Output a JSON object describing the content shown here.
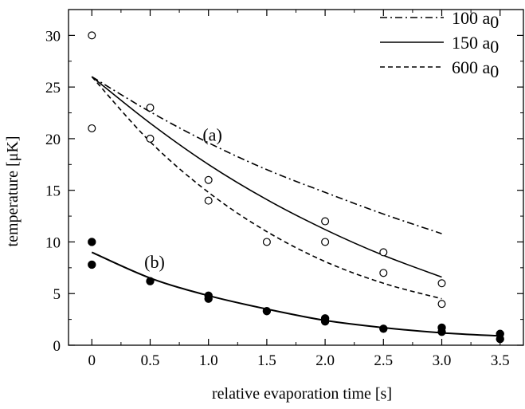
{
  "chart_data": {
    "type": "scatter",
    "xlabel": "relative evaporation time [s]",
    "ylabel": "temperature [μK]",
    "xlim": [
      -0.2,
      3.7
    ],
    "ylim": [
      0,
      32.5
    ],
    "xticks": [
      {
        "value": 0,
        "label": "0"
      },
      {
        "value": 0.5,
        "label": "0.5"
      },
      {
        "value": 1.0,
        "label": "1.0"
      },
      {
        "value": 1.5,
        "label": "1.5"
      },
      {
        "value": 2.0,
        "label": "2.0"
      },
      {
        "value": 2.5,
        "label": "2.5"
      },
      {
        "value": 3.0,
        "label": "3.0"
      },
      {
        "value": 3.5,
        "label": "3.5"
      }
    ],
    "yticks": [
      {
        "value": 0,
        "label": "0"
      },
      {
        "value": 5,
        "label": "5"
      },
      {
        "value": 10,
        "label": "10"
      },
      {
        "value": 15,
        "label": "15"
      },
      {
        "value": 20,
        "label": "20"
      },
      {
        "value": 25,
        "label": "25"
      },
      {
        "value": 30,
        "label": "30"
      }
    ],
    "grid": false,
    "legend_position": "top-right",
    "annotations": [
      {
        "text": "(a)",
        "x": 0.95,
        "y": 19.8
      },
      {
        "text": "(b)",
        "x": 0.45,
        "y": 7.5
      }
    ],
    "series": [
      {
        "name": "100 a",
        "name_subscript": "0",
        "style": "dashdot",
        "x": [
          0,
          0.5,
          1.0,
          1.5,
          2.0,
          2.5,
          3.0
        ],
        "y": [
          26.0,
          22.6,
          19.6,
          17.0,
          14.8,
          12.7,
          10.8
        ]
      },
      {
        "name": "150 a",
        "name_subscript": "0",
        "style": "solid",
        "x": [
          0,
          0.5,
          1.0,
          1.5,
          2.0,
          2.5,
          3.0
        ],
        "y": [
          26.0,
          21.5,
          17.5,
          14.1,
          11.2,
          8.7,
          6.6
        ]
      },
      {
        "name": "600 a",
        "name_subscript": "0",
        "style": "dashed",
        "x": [
          0,
          0.5,
          1.0,
          1.5,
          2.0,
          2.5,
          3.0
        ],
        "y": [
          26.0,
          19.7,
          14.8,
          11.0,
          8.1,
          6.0,
          4.5
        ]
      },
      {
        "style": "fit",
        "x": [
          0,
          0.5,
          1.0,
          1.5,
          2.0,
          2.5,
          3.0,
          3.5
        ],
        "y": [
          9.0,
          6.5,
          4.8,
          3.5,
          2.4,
          1.7,
          1.2,
          0.9
        ]
      },
      {
        "style": "open-markers",
        "x": [
          0,
          0,
          0.5,
          0.5,
          1.0,
          1.0,
          1.5,
          2.0,
          2.0,
          2.5,
          2.5,
          3.0,
          3.0
        ],
        "y": [
          30,
          21,
          23,
          20,
          16,
          14,
          10,
          12,
          10,
          9,
          7,
          6,
          4
        ]
      },
      {
        "style": "filled-markers",
        "x": [
          0,
          0,
          0.5,
          1.0,
          1.0,
          1.5,
          2.0,
          2.0,
          2.5,
          3.0,
          3.0,
          3.5,
          3.5
        ],
        "y": [
          10.0,
          7.8,
          6.2,
          4.8,
          4.5,
          3.3,
          2.6,
          2.3,
          1.6,
          1.7,
          1.3,
          1.1,
          0.6
        ]
      }
    ]
  }
}
